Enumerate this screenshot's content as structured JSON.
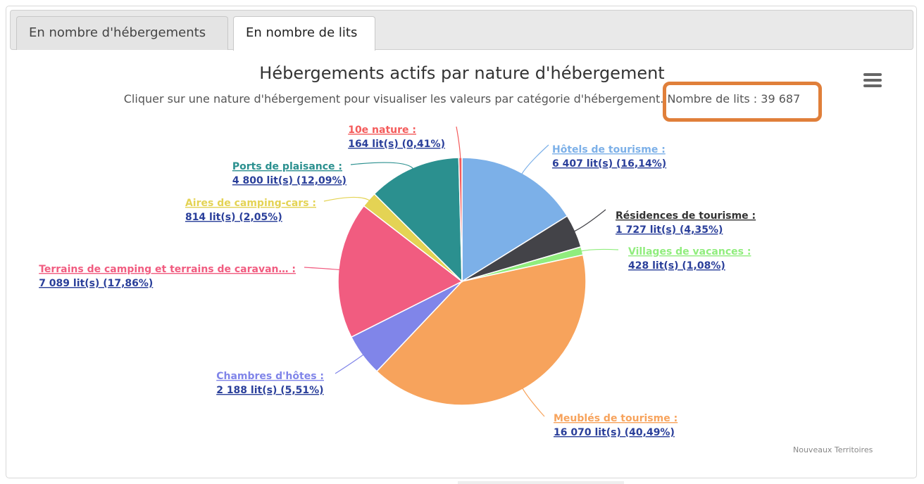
{
  "tabs": [
    {
      "label": "En nombre d'hébergements",
      "active": false
    },
    {
      "label": "En nombre de lits",
      "active": true
    }
  ],
  "menu": {
    "icon": "hamburger-menu-icon"
  },
  "credits": "Nouveaux Territoires",
  "highlight_color": "#e07f3a",
  "chart_data": {
    "type": "pie",
    "title": "Hébergements actifs par nature d'hébergement",
    "subtitle": "Cliquer sur une nature d'hébergement pour visualiser les valeurs par catégorie d'hébergement. Nombre de lits : 39 687",
    "subtitle_main": "Cliquer sur une nature d'hébergement pour visualiser les valeurs par catégorie d'hébergement.",
    "subtitle_total": "Nombre de lits : 39 687",
    "total": 39687,
    "slices": [
      {
        "name": "Hôtels de tourisme",
        "value": 6407,
        "value_text": "6 407 lit(s) (16,14%)",
        "percent": 16.14,
        "color": "#7cb0e8"
      },
      {
        "name": "Résidences de tourisme",
        "value": 1727,
        "value_text": "1 727 lit(s) (4,35%)",
        "percent": 4.35,
        "color": "#434348"
      },
      {
        "name": "Villages de vacances",
        "value": 428,
        "value_text": "428 lit(s) (1,08%)",
        "percent": 1.08,
        "color": "#90ed7d"
      },
      {
        "name": "Meublés de tourisme",
        "value": 16070,
        "value_text": "16 070 lit(s) (40,49%)",
        "percent": 40.49,
        "color": "#f7a35c"
      },
      {
        "name": "Chambres d'hôtes",
        "value": 2188,
        "value_text": "2 188 lit(s) (5,51%)",
        "percent": 5.51,
        "color": "#8085e9"
      },
      {
        "name": "Terrains de camping et terrains de caravan…",
        "value": 7089,
        "value_text": "7 089 lit(s) (17,86%)",
        "percent": 17.86,
        "color": "#f15c80"
      },
      {
        "name": "Aires de camping-cars",
        "value": 814,
        "value_text": "814 lit(s) (2,05%)",
        "percent": 2.05,
        "color": "#e4d354"
      },
      {
        "name": "Ports de plaisance",
        "value": 4800,
        "value_text": "4 800 lit(s) (12,09%)",
        "percent": 12.09,
        "color": "#2b908f"
      },
      {
        "name": "10e nature",
        "value": 164,
        "value_text": "164 lit(s) (0,41%)",
        "percent": 0.41,
        "color": "#f45b5b"
      }
    ]
  }
}
